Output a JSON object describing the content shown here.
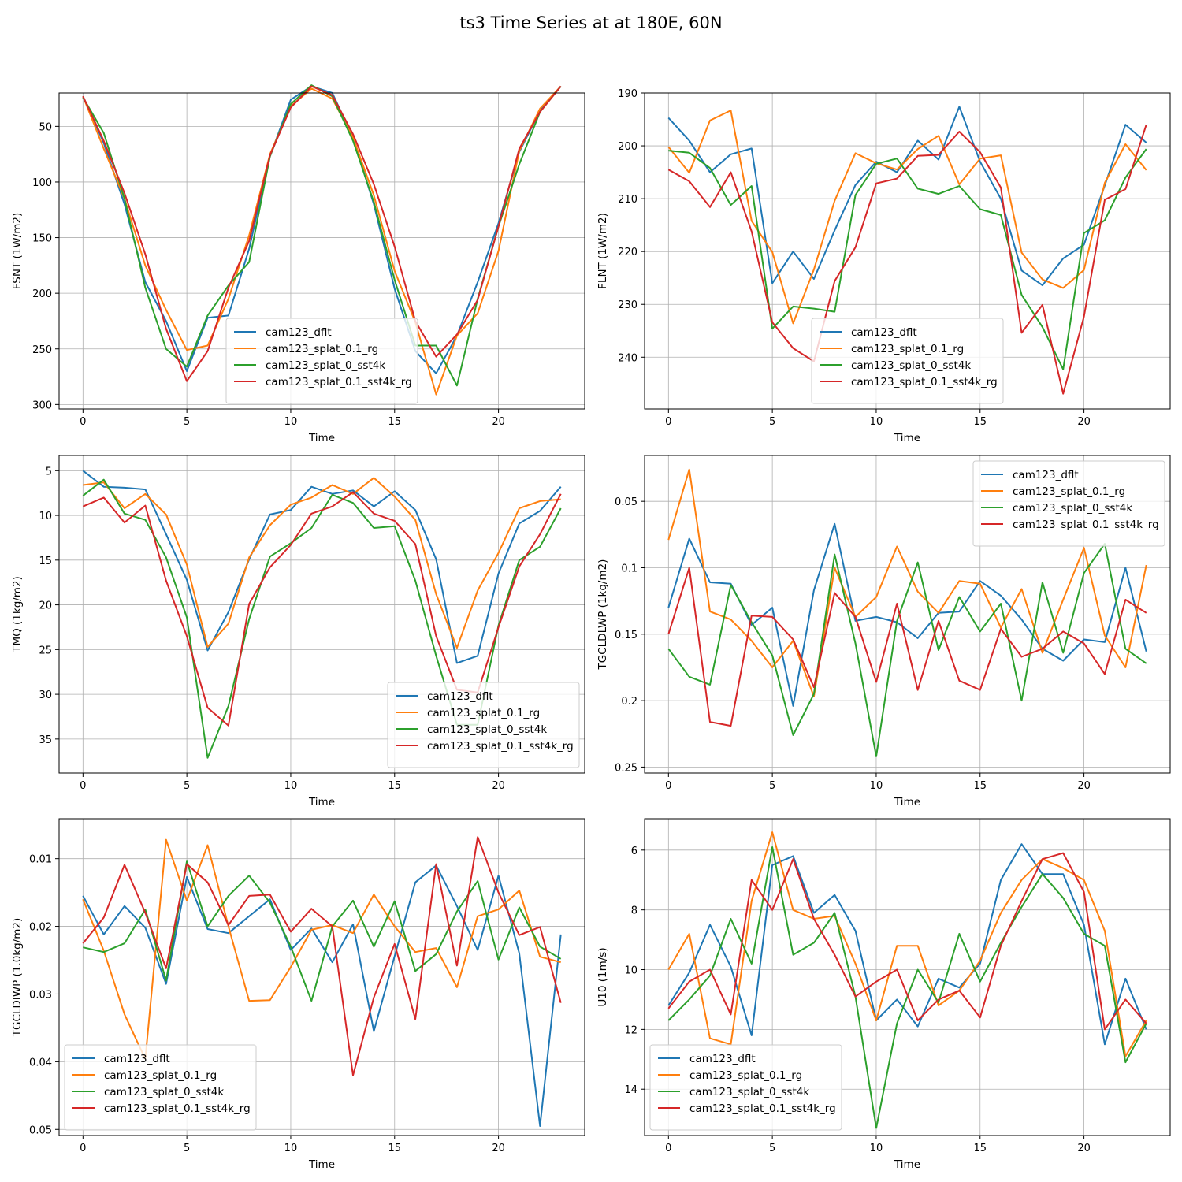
{
  "figure": {
    "title": "ts3 Time Series at at 180E, 60N",
    "x": [
      0,
      1,
      2,
      3,
      4,
      5,
      6,
      7,
      8,
      9,
      10,
      11,
      12,
      13,
      14,
      15,
      16,
      17,
      18,
      19,
      20,
      21,
      22,
      23
    ],
    "series_colors": [
      "#1f77b4",
      "#ff7f0e",
      "#2ca02c",
      "#d62728"
    ]
  },
  "chart_data": [
    {
      "type": "line",
      "title": "",
      "xlabel": "Time",
      "ylabel": "FSNT (1W/m2)",
      "xlim": [
        -1.15,
        24.15
      ],
      "ylim": [
        304,
        20
      ],
      "xticks": [
        0,
        5,
        10,
        15,
        20
      ],
      "yticks": [
        50,
        100,
        150,
        200,
        250,
        300
      ],
      "grid": true,
      "legend_position": "lower-center",
      "series": [
        {
          "name": "cam123_dflt",
          "values": [
            23,
            65,
            120,
            190,
            225,
            270,
            222,
            220,
            160,
            77,
            26,
            14,
            20,
            60,
            120,
            196,
            252,
            272,
            238,
            190,
            137,
            73,
            36,
            14
          ]
        },
        {
          "name": "cam123_splat_0.1_rg",
          "values": [
            23,
            70,
            115,
            175,
            215,
            251,
            247,
            205,
            148,
            75,
            32,
            16,
            25,
            60,
            112,
            180,
            226,
            291,
            238,
            218,
            162,
            72,
            34,
            14
          ]
        },
        {
          "name": "cam123_splat_0_sst4k",
          "values": [
            24,
            56,
            115,
            195,
            250,
            266,
            220,
            193,
            172,
            77,
            30,
            13,
            23,
            63,
            118,
            188,
            247,
            247,
            283,
            205,
            140,
            84,
            37,
            14
          ]
        },
        {
          "name": "cam123_splat_0.1_sst4k_rg",
          "values": [
            23,
            63,
            110,
            165,
            232,
            279,
            252,
            195,
            153,
            76,
            33,
            14,
            22,
            57,
            102,
            158,
            225,
            257,
            237,
            206,
            140,
            70,
            37,
            14
          ]
        }
      ]
    },
    {
      "type": "line",
      "title": "",
      "xlabel": "Time",
      "ylabel": "FLNT (1W/m2)",
      "xlim": [
        -1.15,
        24.15
      ],
      "ylim": [
        249.8,
        190
      ],
      "xticks": [
        0,
        5,
        10,
        15,
        20
      ],
      "yticks": [
        190,
        200,
        210,
        220,
        230,
        240
      ],
      "grid": true,
      "legend_position": "lower-center",
      "series": [
        {
          "name": "cam123_dflt",
          "values": [
            194.7,
            199.0,
            205.0,
            201.6,
            200.5,
            226.0,
            220.0,
            225.2,
            216.0,
            207.4,
            203.0,
            205.0,
            199.0,
            202.6,
            192.6,
            203.0,
            210.0,
            223.6,
            226.4,
            221.3,
            218.7,
            207.5,
            196.0,
            199.4
          ]
        },
        {
          "name": "cam123_splat_0.1_rg",
          "values": [
            200.2,
            205.1,
            195.2,
            193.3,
            214.2,
            220.1,
            233.6,
            223.4,
            210.4,
            201.4,
            203.3,
            204.5,
            200.6,
            198.1,
            207.3,
            202.4,
            201.8,
            220.2,
            225.3,
            226.9,
            223.5,
            207.0,
            199.7,
            204.6
          ]
        },
        {
          "name": "cam123_splat_0_sst4k",
          "values": [
            200.9,
            201.3,
            204.2,
            211.2,
            207.6,
            234.6,
            230.4,
            230.8,
            231.4,
            209.3,
            203.4,
            202.4,
            208.1,
            209.1,
            207.6,
            212.0,
            213.1,
            228.2,
            234.3,
            242.3,
            216.5,
            214.1,
            206.0,
            200.6
          ]
        },
        {
          "name": "cam123_splat_0.1_sst4k_rg",
          "values": [
            204.5,
            206.7,
            211.6,
            205.0,
            216.2,
            233.4,
            238.3,
            240.8,
            225.6,
            219.2,
            207.1,
            206.2,
            201.9,
            201.7,
            197.3,
            201.2,
            207.9,
            235.4,
            230.1,
            246.9,
            232.3,
            210.2,
            208.2,
            196.0
          ]
        }
      ]
    },
    {
      "type": "line",
      "title": "",
      "xlabel": "Time",
      "ylabel": "TMQ (1kg/m2)",
      "xlim": [
        -1.15,
        24.15
      ],
      "ylim": [
        38.8,
        3.3
      ],
      "xticks": [
        0,
        5,
        10,
        15,
        20
      ],
      "yticks": [
        5,
        10,
        15,
        20,
        25,
        30,
        35
      ],
      "grid": true,
      "legend_position": "lower-right",
      "series": [
        {
          "name": "cam123_dflt",
          "values": [
            5.0,
            6.8,
            6.9,
            7.1,
            12.1,
            17.2,
            25.1,
            20.8,
            14.9,
            9.9,
            9.4,
            6.8,
            7.6,
            7.2,
            9.0,
            7.3,
            9.4,
            14.9,
            26.5,
            25.7,
            16.5,
            10.9,
            9.5,
            6.8
          ]
        },
        {
          "name": "cam123_splat_0.1_rg",
          "values": [
            6.6,
            6.3,
            9.2,
            7.6,
            9.9,
            15.5,
            24.7,
            22.1,
            14.7,
            11.1,
            8.8,
            8.0,
            6.6,
            7.6,
            5.8,
            7.9,
            10.5,
            18.8,
            24.8,
            18.4,
            14.2,
            9.2,
            8.4,
            8.2
          ]
        },
        {
          "name": "cam123_splat_0_sst4k",
          "values": [
            7.8,
            6.0,
            9.8,
            10.5,
            14.7,
            21.4,
            37.1,
            31.3,
            21.6,
            14.6,
            13.1,
            11.4,
            7.7,
            8.6,
            11.4,
            11.2,
            17.3,
            25.7,
            33.4,
            33.4,
            22.3,
            15.0,
            13.5,
            9.2
          ]
        },
        {
          "name": "cam123_splat_0.1_sst4k_rg",
          "values": [
            9.0,
            8.0,
            10.8,
            8.9,
            17.3,
            23.5,
            31.5,
            33.5,
            19.9,
            15.8,
            13.3,
            9.8,
            9.0,
            7.4,
            9.8,
            10.6,
            13.2,
            23.5,
            29.5,
            29.8,
            22.5,
            15.7,
            12.1,
            7.6
          ]
        }
      ]
    },
    {
      "type": "line",
      "title": "",
      "xlabel": "Time",
      "ylabel": "TGCLDLWP (1kg/m2)",
      "xlim": [
        -1.15,
        24.15
      ],
      "ylim": [
        0.2545,
        0.0155
      ],
      "xticks": [
        0,
        5,
        10,
        15,
        20
      ],
      "yticks": [
        0.05,
        0.1,
        0.15,
        0.2,
        0.25
      ],
      "grid": true,
      "legend_position": "upper-right",
      "series": [
        {
          "name": "cam123_dflt",
          "values": [
            0.13,
            0.078,
            0.111,
            0.112,
            0.143,
            0.13,
            0.204,
            0.117,
            0.067,
            0.14,
            0.137,
            0.141,
            0.153,
            0.134,
            0.133,
            0.11,
            0.121,
            0.139,
            0.161,
            0.17,
            0.154,
            0.156,
            0.1,
            0.163
          ]
        },
        {
          "name": "cam123_splat_0.1_rg",
          "values": [
            0.079,
            0.026,
            0.133,
            0.139,
            0.155,
            0.175,
            0.155,
            0.197,
            0.1,
            0.137,
            0.122,
            0.084,
            0.118,
            0.134,
            0.11,
            0.112,
            0.145,
            0.116,
            0.164,
            0.124,
            0.085,
            0.151,
            0.175,
            0.098
          ]
        },
        {
          "name": "cam123_splat_0_sst4k",
          "values": [
            0.161,
            0.182,
            0.188,
            0.113,
            0.141,
            0.166,
            0.226,
            0.195,
            0.09,
            0.157,
            0.242,
            0.14,
            0.096,
            0.162,
            0.122,
            0.148,
            0.127,
            0.2,
            0.111,
            0.164,
            0.104,
            0.082,
            0.161,
            0.172
          ]
        },
        {
          "name": "cam123_splat_0.1_sst4k_rg",
          "values": [
            0.15,
            0.1,
            0.216,
            0.219,
            0.136,
            0.137,
            0.154,
            0.19,
            0.119,
            0.137,
            0.186,
            0.127,
            0.192,
            0.14,
            0.185,
            0.192,
            0.146,
            0.167,
            0.161,
            0.148,
            0.157,
            0.18,
            0.124,
            0.134
          ]
        }
      ]
    },
    {
      "type": "line",
      "title": "",
      "xlabel": "Time",
      "ylabel": "TGCLDIWP (1.0kg/m2)",
      "xlim": [
        -1.15,
        24.15
      ],
      "ylim": [
        0.0509,
        0.0041
      ],
      "xticks": [
        0,
        5,
        10,
        15,
        20
      ],
      "yticks": [
        0.01,
        0.02,
        0.03,
        0.04,
        0.05
      ],
      "grid": true,
      "legend_position": "lower-left",
      "series": [
        {
          "name": "cam123_dflt",
          "values": [
            0.0155,
            0.0212,
            0.017,
            0.0202,
            0.0285,
            0.0127,
            0.0204,
            0.021,
            0.0185,
            0.016,
            0.0235,
            0.0203,
            0.0253,
            0.0197,
            0.0355,
            0.0244,
            0.0135,
            0.011,
            0.017,
            0.0235,
            0.0125,
            0.024,
            0.0495,
            0.0212
          ]
        },
        {
          "name": "cam123_splat_0.1_rg",
          "values": [
            0.016,
            0.0236,
            0.033,
            0.0396,
            0.0072,
            0.0162,
            0.008,
            0.02,
            0.031,
            0.0309,
            0.026,
            0.0205,
            0.0198,
            0.021,
            0.0153,
            0.02,
            0.0238,
            0.0232,
            0.029,
            0.0185,
            0.0175,
            0.0147,
            0.0245,
            0.0253
          ]
        },
        {
          "name": "cam123_splat_0_sst4k",
          "values": [
            0.0231,
            0.0238,
            0.0225,
            0.0175,
            0.028,
            0.0104,
            0.02,
            0.0155,
            0.0125,
            0.0165,
            0.023,
            0.031,
            0.02,
            0.0162,
            0.023,
            0.0163,
            0.0266,
            0.0241,
            0.0178,
            0.0133,
            0.0249,
            0.0172,
            0.023,
            0.0248
          ]
        },
        {
          "name": "cam123_splat_0.1_sst4k_rg",
          "values": [
            0.0225,
            0.0187,
            0.0109,
            0.018,
            0.0262,
            0.0108,
            0.0135,
            0.0198,
            0.0155,
            0.0153,
            0.0208,
            0.0174,
            0.02,
            0.042,
            0.0305,
            0.0226,
            0.0337,
            0.0108,
            0.0258,
            0.0068,
            0.015,
            0.0213,
            0.0201,
            0.0313
          ]
        }
      ]
    },
    {
      "type": "line",
      "title": "",
      "xlabel": "Time",
      "ylabel": "U10 (1m/s)",
      "xlim": [
        -1.15,
        24.15
      ],
      "ylim": [
        15.55,
        4.95
      ],
      "xticks": [
        0,
        5,
        10,
        15,
        20
      ],
      "yticks": [
        6,
        8,
        10,
        12,
        14
      ],
      "grid": true,
      "legend_position": "lower-left",
      "series": [
        {
          "name": "cam123_dflt",
          "values": [
            11.2,
            10.1,
            8.5,
            9.9,
            12.2,
            6.5,
            6.2,
            8.1,
            7.5,
            8.7,
            11.7,
            11.0,
            11.9,
            10.3,
            10.6,
            9.8,
            7.0,
            5.8,
            6.8,
            6.8,
            8.5,
            12.5,
            10.3,
            12.0
          ]
        },
        {
          "name": "cam123_splat_0.1_rg",
          "values": [
            10.0,
            8.8,
            12.3,
            12.5,
            7.7,
            5.4,
            8.0,
            8.3,
            8.2,
            9.8,
            11.7,
            9.2,
            9.2,
            11.2,
            10.7,
            9.7,
            8.1,
            7.0,
            6.3,
            6.6,
            7.0,
            8.7,
            12.9,
            11.7
          ]
        },
        {
          "name": "cam123_splat_0_sst4k",
          "values": [
            11.7,
            11.0,
            10.2,
            8.3,
            9.8,
            5.9,
            9.5,
            9.1,
            8.1,
            10.9,
            15.3,
            11.8,
            10.0,
            11.1,
            8.8,
            10.4,
            9.1,
            7.9,
            6.8,
            7.6,
            8.8,
            9.2,
            13.1,
            11.8
          ]
        },
        {
          "name": "cam123_splat_0.1_sst4k_rg",
          "values": [
            11.3,
            10.4,
            10.0,
            11.5,
            7.0,
            8.0,
            6.3,
            8.3,
            9.5,
            10.9,
            10.4,
            10.0,
            11.7,
            11.0,
            10.7,
            11.6,
            9.2,
            7.7,
            6.3,
            6.1,
            7.4,
            12.0,
            11.0,
            11.8
          ]
        }
      ]
    }
  ]
}
